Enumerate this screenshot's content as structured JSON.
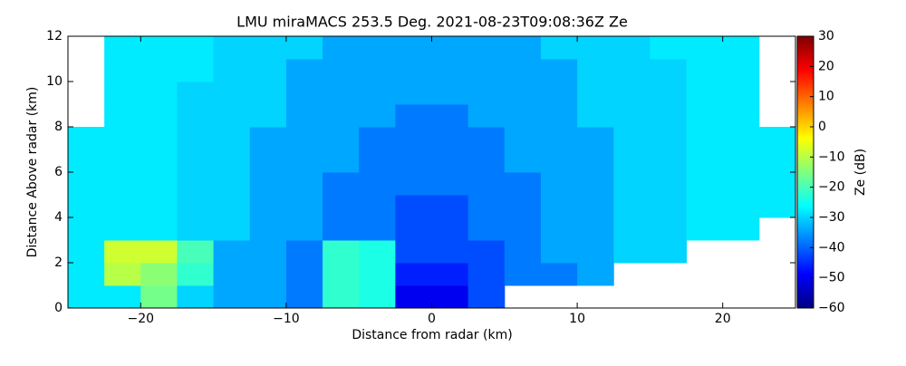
{
  "chart_data": {
    "type": "heatmap",
    "title": "LMU miraMACS 253.5 Deg. 2021-08-23T09:08:36Z  Ze",
    "x_label": "Distance from radar (km)",
    "y_label": "Distance Above radar  (km)",
    "colorbar_label": "Ze (dB)",
    "colormap": "jet",
    "clim": [
      -60,
      30
    ],
    "cticks": [
      {
        "value": -60,
        "label": "−60"
      },
      {
        "value": -50,
        "label": "−50"
      },
      {
        "value": -40,
        "label": "−40"
      },
      {
        "value": -30,
        "label": "−30"
      },
      {
        "value": -20,
        "label": "−20"
      },
      {
        "value": -10,
        "label": "−10"
      },
      0,
      10,
      20,
      30
    ],
    "xlim": [
      -25,
      25
    ],
    "xticks": [
      {
        "value": -20,
        "label": "−20"
      },
      {
        "value": -10,
        "label": "−10"
      },
      0,
      10,
      20
    ],
    "ylim": [
      0,
      12
    ],
    "yticks": [
      0,
      2,
      4,
      6,
      8,
      10,
      12
    ],
    "x_bins": [
      -25,
      -22.5,
      -20,
      -17.5,
      -15,
      -12.5,
      -10,
      -7.5,
      -5,
      -2.5,
      0,
      2.5,
      5,
      7.5,
      10,
      12.5,
      15,
      17.5,
      20,
      22.5,
      25
    ],
    "y_bins": [
      0,
      1,
      2,
      3,
      4,
      5,
      6,
      7,
      8,
      9,
      10,
      11,
      12
    ],
    "values": [
      [
        -28,
        -28,
        -16,
        -30,
        -34,
        -34,
        -38,
        -22,
        -24,
        -50,
        -50,
        -42,
        null,
        null,
        null,
        null,
        null,
        null,
        null,
        null
      ],
      [
        -28,
        -10,
        -14,
        -22,
        -34,
        -34,
        -38,
        -22,
        -24,
        -46,
        -46,
        -42,
        -38,
        -38,
        -34,
        null,
        null,
        null,
        null,
        null
      ],
      [
        -28,
        -8,
        -8,
        -20,
        -34,
        -34,
        -38,
        -22,
        -24,
        -42,
        -42,
        -42,
        -38,
        -34,
        -34,
        -30,
        -30,
        null,
        null,
        null
      ],
      [
        -28,
        -28,
        -28,
        -30,
        -30,
        -34,
        -34,
        -38,
        -38,
        -42,
        -42,
        -38,
        -38,
        -34,
        -34,
        -30,
        -30,
        -28,
        -28,
        null
      ],
      [
        -28,
        -28,
        -28,
        -30,
        -30,
        -34,
        -34,
        -38,
        -38,
        -42,
        -42,
        -38,
        -38,
        -34,
        -34,
        -30,
        -30,
        -28,
        -28,
        -28
      ],
      [
        -28,
        -28,
        -28,
        -30,
        -30,
        -34,
        -34,
        -38,
        -38,
        -38,
        -38,
        -38,
        -38,
        -34,
        -34,
        -30,
        -30,
        -28,
        -28,
        -28
      ],
      [
        -28,
        -28,
        -28,
        -30,
        -30,
        -34,
        -34,
        -34,
        -38,
        -38,
        -38,
        -38,
        -34,
        -34,
        -34,
        -30,
        -30,
        -28,
        -28,
        -28
      ],
      [
        -28,
        -28,
        -28,
        -30,
        -30,
        -34,
        -34,
        -34,
        -38,
        -38,
        -38,
        -38,
        -34,
        -34,
        -34,
        -30,
        -30,
        -28,
        -28,
        -28
      ],
      [
        null,
        -28,
        -28,
        -30,
        -30,
        -30,
        -34,
        -34,
        -34,
        -38,
        -38,
        -34,
        -34,
        -34,
        -30,
        -30,
        -30,
        -28,
        -28,
        null
      ],
      [
        null,
        -28,
        -28,
        -30,
        -30,
        -30,
        -34,
        -34,
        -34,
        -34,
        -34,
        -34,
        -34,
        -34,
        -30,
        -30,
        -30,
        -28,
        -28,
        null
      ],
      [
        null,
        -28,
        -28,
        -28,
        -30,
        -30,
        -34,
        -34,
        -34,
        -34,
        -34,
        -34,
        -34,
        -34,
        -30,
        -30,
        -30,
        -28,
        -28,
        null
      ],
      [
        null,
        -28,
        -28,
        -28,
        -30,
        -30,
        -30,
        -34,
        -34,
        -34,
        -34,
        -34,
        -34,
        -30,
        -30,
        -30,
        -28,
        -28,
        -28,
        null
      ]
    ]
  }
}
